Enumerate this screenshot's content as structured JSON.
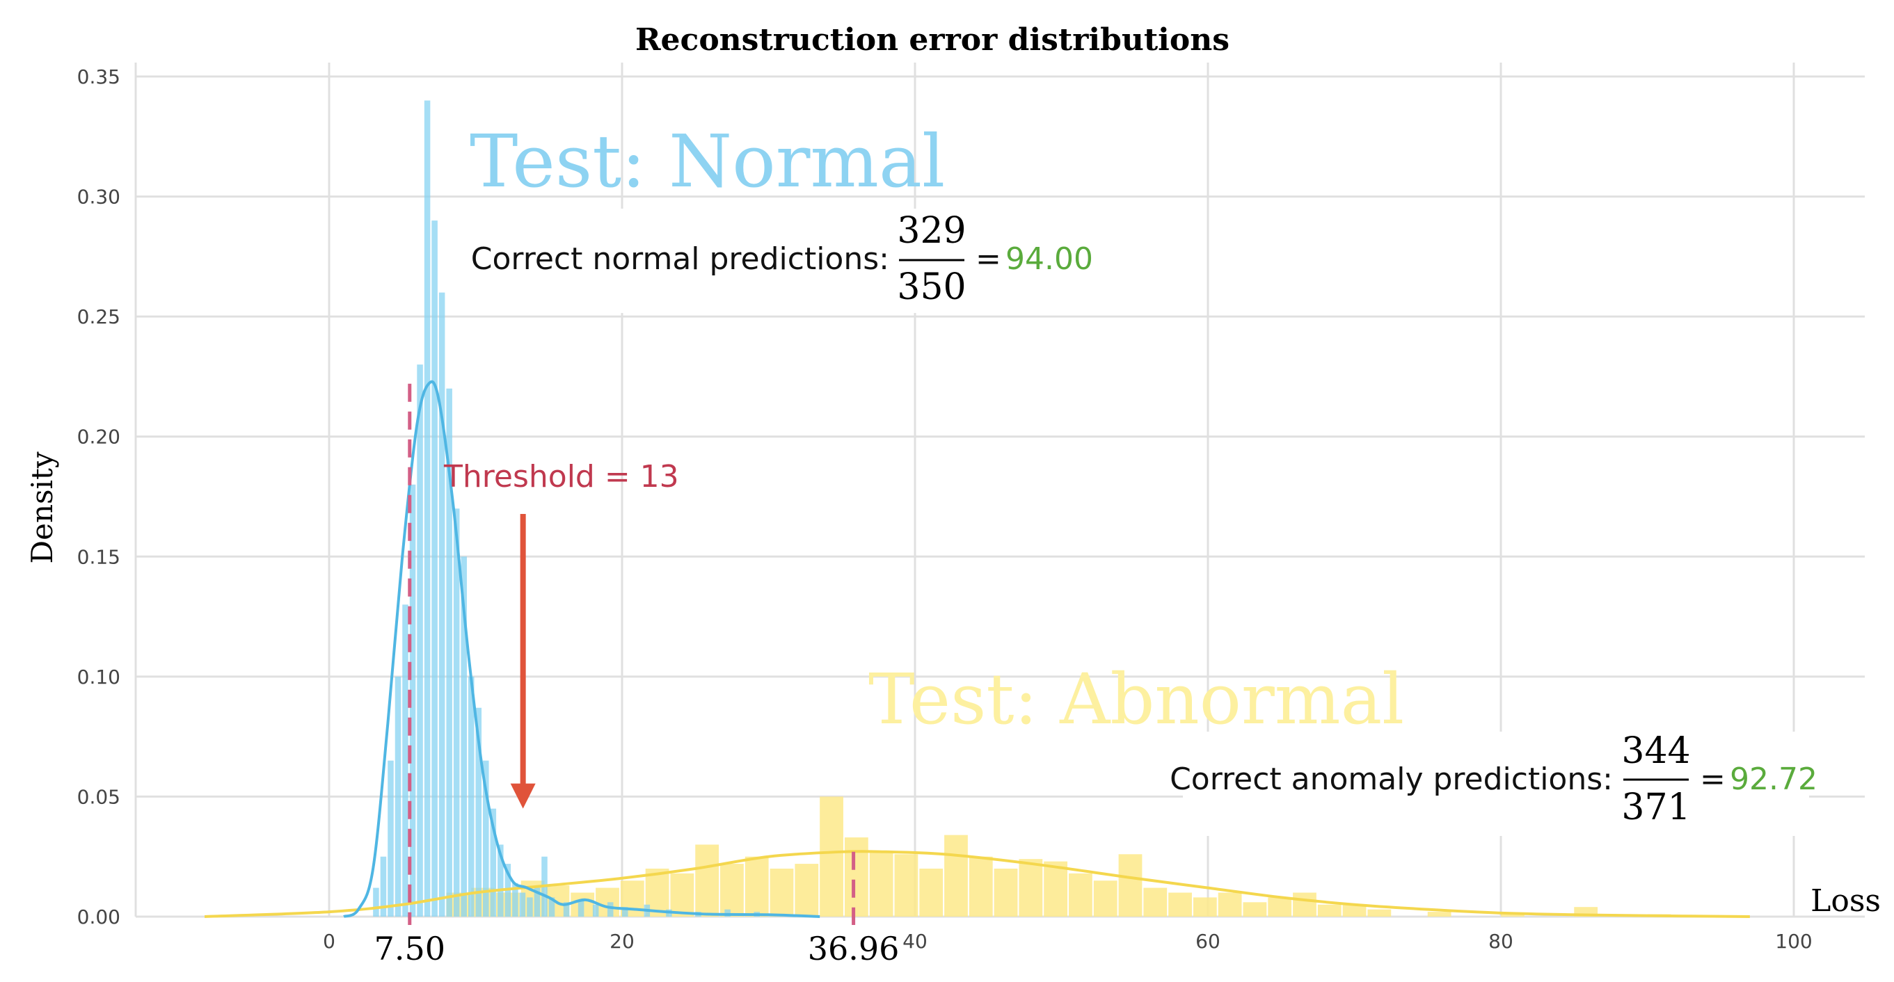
{
  "chart_data": {
    "type": "histogram",
    "title": "Reconstruction error  distributions",
    "xlabel": "Loss",
    "ylabel": "Density",
    "xlim": [
      -12,
      105
    ],
    "ylim": [
      0,
      0.355
    ],
    "grid": true,
    "x_ticks": [
      0,
      20,
      40,
      60,
      80,
      100
    ],
    "x_tick_labels": [
      "0",
      "20",
      "40",
      "60",
      "80",
      "100"
    ],
    "y_ticks": [
      0.0,
      0.05,
      0.1,
      0.15,
      0.2,
      0.25,
      0.3,
      0.35
    ],
    "y_tick_labels": [
      "0.00",
      "0.05",
      "0.10",
      "0.15",
      "0.20",
      "0.25",
      "0.30",
      "0.35"
    ],
    "series": [
      {
        "name": "Test: Normal",
        "color": "#87d3f2",
        "kde_color": "#4fb6e3",
        "bin_width": 0.5,
        "bins": [
          [
            3.0,
            0.012
          ],
          [
            3.5,
            0.025
          ],
          [
            4.0,
            0.065
          ],
          [
            4.5,
            0.1
          ],
          [
            5.0,
            0.13
          ],
          [
            5.5,
            0.18
          ],
          [
            6.0,
            0.23
          ],
          [
            6.5,
            0.34
          ],
          [
            7.0,
            0.29
          ],
          [
            7.5,
            0.26
          ],
          [
            8.0,
            0.22
          ],
          [
            8.5,
            0.17
          ],
          [
            9.0,
            0.15
          ],
          [
            9.5,
            0.1
          ],
          [
            10.0,
            0.087
          ],
          [
            10.5,
            0.065
          ],
          [
            11.0,
            0.045
          ],
          [
            11.5,
            0.03
          ],
          [
            12.0,
            0.022
          ],
          [
            12.5,
            0.014
          ],
          [
            13.0,
            0.01
          ],
          [
            13.5,
            0.008
          ],
          [
            14.0,
            0.012
          ],
          [
            14.5,
            0.025
          ],
          [
            15.0,
            0.008
          ],
          [
            16.0,
            0.006
          ],
          [
            17.0,
            0.007
          ],
          [
            18.0,
            0.005
          ],
          [
            19.0,
            0.006
          ],
          [
            20.0,
            0.004
          ],
          [
            21.5,
            0.005
          ],
          [
            23.0,
            0.003
          ],
          [
            25.0,
            0.002
          ],
          [
            27.0,
            0.003
          ],
          [
            29.0,
            0.002
          ]
        ],
        "kde": [
          [
            1.0,
            0.0
          ],
          [
            2.0,
            0.003
          ],
          [
            3.0,
            0.02
          ],
          [
            4.0,
            0.08
          ],
          [
            5.0,
            0.15
          ],
          [
            6.0,
            0.205
          ],
          [
            6.8,
            0.222
          ],
          [
            7.5,
            0.215
          ],
          [
            8.5,
            0.17
          ],
          [
            9.5,
            0.11
          ],
          [
            10.5,
            0.06
          ],
          [
            11.5,
            0.03
          ],
          [
            12.5,
            0.015
          ],
          [
            13.5,
            0.012
          ],
          [
            15.0,
            0.008
          ],
          [
            16.0,
            0.005
          ],
          [
            17.5,
            0.007
          ],
          [
            19.0,
            0.004
          ],
          [
            21.0,
            0.003
          ],
          [
            23.0,
            0.002
          ],
          [
            26.0,
            0.001
          ],
          [
            30.0,
            0.0008
          ],
          [
            33.5,
            0.0
          ]
        ]
      },
      {
        "name": "Test: Abnormal",
        "color": "#fde98a",
        "kde_color": "#f4d74e",
        "bin_width": 1.7,
        "bins": [
          [
            8.0,
            0.01
          ],
          [
            9.7,
            0.012
          ],
          [
            11.4,
            0.01
          ],
          [
            13.1,
            0.015
          ],
          [
            14.8,
            0.013
          ],
          [
            16.5,
            0.01
          ],
          [
            18.2,
            0.012
          ],
          [
            19.9,
            0.015
          ],
          [
            21.6,
            0.02
          ],
          [
            23.3,
            0.018
          ],
          [
            25.0,
            0.03
          ],
          [
            26.7,
            0.022
          ],
          [
            28.4,
            0.025
          ],
          [
            30.1,
            0.02
          ],
          [
            31.8,
            0.022
          ],
          [
            33.5,
            0.05
          ],
          [
            35.2,
            0.033
          ],
          [
            36.9,
            0.027
          ],
          [
            38.6,
            0.026
          ],
          [
            40.3,
            0.02
          ],
          [
            42.0,
            0.034
          ],
          [
            43.7,
            0.025
          ],
          [
            45.4,
            0.02
          ],
          [
            47.1,
            0.024
          ],
          [
            48.8,
            0.023
          ],
          [
            50.5,
            0.018
          ],
          [
            52.2,
            0.015
          ],
          [
            53.9,
            0.026
          ],
          [
            55.6,
            0.012
          ],
          [
            57.3,
            0.01
          ],
          [
            59.0,
            0.008
          ],
          [
            60.7,
            0.01
          ],
          [
            62.4,
            0.006
          ],
          [
            64.1,
            0.008
          ],
          [
            65.8,
            0.01
          ],
          [
            67.5,
            0.005
          ],
          [
            69.2,
            0.005
          ],
          [
            70.9,
            0.003
          ],
          [
            75.0,
            0.002
          ],
          [
            80.0,
            0.001
          ],
          [
            85.0,
            0.004
          ],
          [
            90.0,
            0.001
          ]
        ],
        "kde": [
          [
            -8.5,
            0.0
          ],
          [
            0.0,
            0.002
          ],
          [
            5.0,
            0.005
          ],
          [
            10.0,
            0.01
          ],
          [
            15.0,
            0.013
          ],
          [
            20.0,
            0.016
          ],
          [
            25.0,
            0.02
          ],
          [
            30.0,
            0.025
          ],
          [
            35.0,
            0.027
          ],
          [
            38.0,
            0.027
          ],
          [
            42.0,
            0.026
          ],
          [
            48.0,
            0.022
          ],
          [
            55.0,
            0.016
          ],
          [
            60.0,
            0.012
          ],
          [
            65.0,
            0.008
          ],
          [
            70.0,
            0.005
          ],
          [
            75.0,
            0.003
          ],
          [
            80.0,
            0.0015
          ],
          [
            85.0,
            0.0008
          ],
          [
            90.0,
            0.0004
          ],
          [
            97.0,
            0.0
          ]
        ]
      }
    ],
    "threshold": {
      "label": "Threshold = 13",
      "value": 13,
      "arrow_tip_y": 0.045,
      "arrow_tail_y": 0.175
    },
    "markers": [
      {
        "label": "7.50",
        "x": 5.5,
        "y_top": 0.222
      },
      {
        "label": "36.96",
        "x": 35.8,
        "y_top": 0.027
      }
    ],
    "annotations": {
      "normal": {
        "title": "Test: Normal",
        "text": "Correct normal predictions:",
        "numerator": "329",
        "denominator": "350",
        "equals": "=",
        "result": "94.00"
      },
      "abnormal": {
        "title": "Test: Abnormal",
        "text": "Correct anomaly predictions:",
        "numerator": "344",
        "denominator": "371",
        "equals": "=",
        "result": "92.72"
      }
    },
    "colors": {
      "grid": "#e0e0e0",
      "threshold": "#c0394f",
      "arrow": "#e0533a",
      "marker": "#d35f86",
      "result": "#5aab3c",
      "normal_title": "#8ed3f2",
      "abnormal_title": "#fdf0a0"
    }
  }
}
